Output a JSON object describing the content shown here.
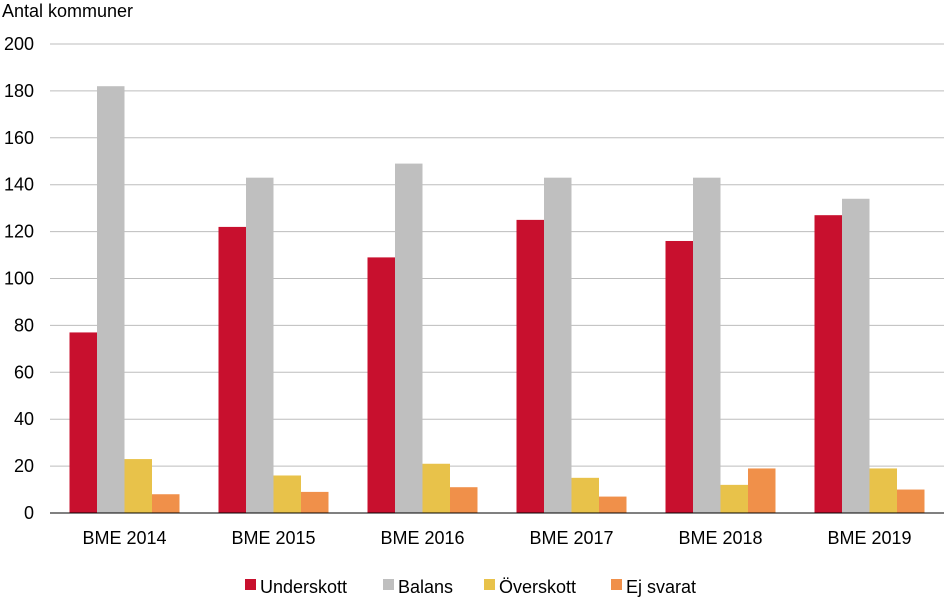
{
  "chart_data": {
    "type": "bar",
    "title": "",
    "ylabel": "Antal kommuner",
    "xlabel": "",
    "ylim": [
      0,
      200
    ],
    "yticks": [
      0,
      20,
      40,
      60,
      80,
      100,
      120,
      140,
      160,
      180,
      200
    ],
    "grid": true,
    "legend_position": "bottom",
    "categories": [
      "BME 2014",
      "BME 2015",
      "BME 2016",
      "BME 2017",
      "BME 2018",
      "BME 2019"
    ],
    "series": [
      {
        "name": "Underskott",
        "color": "#c8102e",
        "values": [
          77,
          122,
          109,
          125,
          116,
          127
        ]
      },
      {
        "name": "Balans",
        "color": "#bfbfbf",
        "values": [
          182,
          143,
          149,
          143,
          143,
          134
        ]
      },
      {
        "name": "Överskott",
        "color": "#e8c24a",
        "values": [
          23,
          16,
          21,
          15,
          12,
          19
        ]
      },
      {
        "name": "Ej svarat",
        "color": "#f0904a",
        "values": [
          8,
          9,
          11,
          7,
          19,
          10
        ]
      }
    ]
  }
}
